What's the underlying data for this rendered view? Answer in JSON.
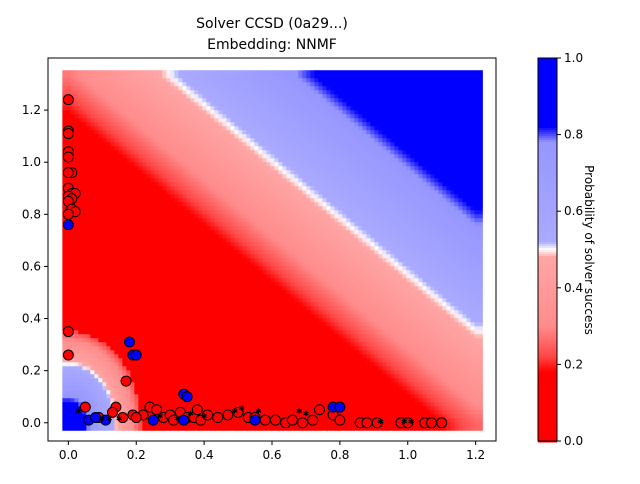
{
  "chart_data": {
    "type": "scatter",
    "title": "Solver CCSD (0a29...)",
    "subtitle": "Embedding: NNMF",
    "xlabel": "",
    "ylabel": "",
    "xlim": [
      -0.06,
      1.26
    ],
    "ylim": [
      -0.07,
      1.4
    ],
    "xticks": [
      "0.0",
      "0.2",
      "0.4",
      "0.6",
      "0.8",
      "1.0",
      "1.2"
    ],
    "xtick_values": [
      0.0,
      0.2,
      0.4,
      0.6,
      0.8,
      1.0,
      1.2
    ],
    "yticks": [
      "0.0",
      "0.2",
      "0.4",
      "0.6",
      "0.8",
      "1.0",
      "1.2"
    ],
    "ytick_values": [
      0.0,
      0.2,
      0.4,
      0.6,
      0.8,
      1.0,
      1.2
    ],
    "grid": false,
    "background_contour": {
      "description": "probability surface",
      "x_range": [
        0.0,
        1.2
      ],
      "y_range": [
        0.0,
        1.33
      ],
      "levels": [
        0.0,
        0.2,
        0.4,
        0.6,
        0.8,
        1.0
      ],
      "colors": [
        "#ff0000",
        "#ff9999",
        "#9999ff",
        "#0000ff"
      ]
    },
    "colorbar": {
      "label": "Probability of solver success",
      "ticks": [
        "0.0",
        "0.2",
        "0.4",
        "0.6",
        "0.8",
        "1.0"
      ],
      "tick_values": [
        0.0,
        0.2,
        0.4,
        0.6,
        0.8,
        1.0
      ]
    },
    "series": [
      {
        "color": "#ff0000",
        "points": [
          [
            0.0,
            1.24
          ],
          [
            0.0,
            1.12
          ],
          [
            0.0,
            1.11
          ],
          [
            0.0,
            1.04
          ],
          [
            0.0,
            1.02
          ],
          [
            0.01,
            0.96
          ],
          [
            0.0,
            0.96
          ],
          [
            0.0,
            0.9
          ],
          [
            0.01,
            0.88
          ],
          [
            0.02,
            0.88
          ],
          [
            0.0,
            0.87
          ],
          [
            0.01,
            0.86
          ],
          [
            0.0,
            0.85
          ],
          [
            0.01,
            0.82
          ],
          [
            0.02,
            0.81
          ],
          [
            0.0,
            0.8
          ],
          [
            0.0,
            0.35
          ],
          [
            0.0,
            0.26
          ],
          [
            0.05,
            0.06
          ],
          [
            0.09,
            0.02
          ],
          [
            0.14,
            0.06
          ],
          [
            0.16,
            0.02
          ],
          [
            0.17,
            0.16
          ],
          [
            0.19,
            0.03
          ],
          [
            0.22,
            0.03
          ],
          [
            0.24,
            0.06
          ],
          [
            0.26,
            0.05
          ],
          [
            0.28,
            0.02
          ],
          [
            0.3,
            0.03
          ],
          [
            0.31,
            0.01
          ],
          [
            0.33,
            0.04
          ],
          [
            0.35,
            0.02
          ],
          [
            0.37,
            0.02
          ],
          [
            0.38,
            0.05
          ],
          [
            0.39,
            0.01
          ],
          [
            0.41,
            0.03
          ],
          [
            0.44,
            0.02
          ],
          [
            0.47,
            0.03
          ],
          [
            0.5,
            0.04
          ],
          [
            0.53,
            0.02
          ],
          [
            0.55,
            0.02
          ],
          [
            0.58,
            0.01
          ],
          [
            0.61,
            0.01
          ],
          [
            0.64,
            0.0
          ],
          [
            0.66,
            0.01
          ],
          [
            0.69,
            0.0
          ],
          [
            0.72,
            0.01
          ],
          [
            0.74,
            0.05
          ],
          [
            0.78,
            0.03
          ],
          [
            0.8,
            0.01
          ],
          [
            0.86,
            0.0
          ],
          [
            0.88,
            0.0
          ],
          [
            0.91,
            0.0
          ],
          [
            0.98,
            0.0
          ],
          [
            1.0,
            0.0
          ],
          [
            1.05,
            0.0
          ],
          [
            1.07,
            0.0
          ],
          [
            1.1,
            0.0
          ],
          [
            0.2,
            0.02
          ],
          [
            0.13,
            0.04
          ]
        ]
      },
      {
        "color": "#0000ff",
        "points": [
          [
            0.0,
            0.76
          ],
          [
            0.18,
            0.31
          ],
          [
            0.19,
            0.26
          ],
          [
            0.2,
            0.26
          ],
          [
            0.34,
            0.11
          ],
          [
            0.35,
            0.1
          ],
          [
            0.34,
            0.01
          ],
          [
            0.25,
            0.01
          ],
          [
            0.06,
            0.01
          ],
          [
            0.08,
            0.02
          ],
          [
            0.11,
            0.01
          ],
          [
            0.78,
            0.06
          ],
          [
            0.8,
            0.06
          ],
          [
            0.55,
            0.01
          ]
        ]
      },
      {
        "color": "#ffffff",
        "points": [
          [
            0.03,
            0.04
          ],
          [
            0.1,
            0.01
          ],
          [
            0.12,
            0.01
          ],
          [
            0.15,
            0.01
          ],
          [
            0.27,
            0.02
          ],
          [
            0.32,
            0.01
          ],
          [
            0.36,
            0.03
          ],
          [
            0.4,
            0.02
          ],
          [
            0.49,
            0.04
          ],
          [
            0.51,
            0.05
          ],
          [
            0.56,
            0.04
          ],
          [
            0.68,
            0.04
          ],
          [
            0.7,
            0.03
          ],
          [
            0.92,
            0.0
          ],
          [
            0.99,
            0.0
          ],
          [
            1.01,
            0.0
          ]
        ]
      }
    ]
  }
}
